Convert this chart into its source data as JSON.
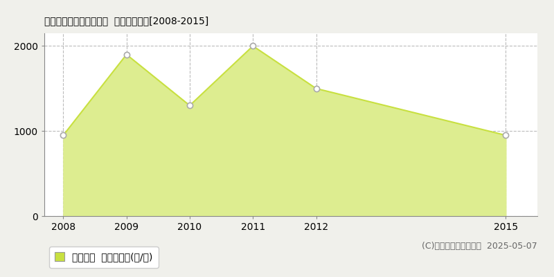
{
  "title": "西臼杵郡五ヶ瀬町桑野内  農地価格推移[2008-2015]",
  "x_values": [
    2008,
    2009,
    2010,
    2011,
    2012,
    2015
  ],
  "y_values": [
    950,
    1900,
    1300,
    2000,
    1500,
    950
  ],
  "line_color": "#c8e040",
  "fill_color": "#dded90",
  "marker_edge_color": "#aaaaaa",
  "background_color": "#f0f0eb",
  "plot_bg_color": "#ffffff",
  "grid_color": "#bbbbbb",
  "ylim": [
    0,
    2150
  ],
  "yticks": [
    0,
    1000,
    2000
  ],
  "legend_label": "農地価格  平均坪単価(円/坪)",
  "legend_color": "#c8e040",
  "copyright_text": "(C)土地価格ドットコム  2025-05-07",
  "title_fontsize": 13,
  "tick_fontsize": 10,
  "legend_fontsize": 10,
  "copyright_fontsize": 9
}
